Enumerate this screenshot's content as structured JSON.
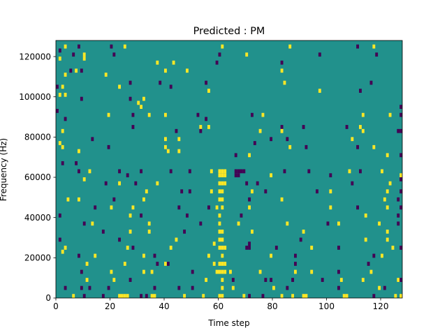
{
  "chart_data": {
    "type": "heatmap",
    "title": "Predicted : PM",
    "xlabel": "Time step",
    "ylabel": "Frequency (Hz)",
    "xlim": [
      0,
      128
    ],
    "ylim": [
      0,
      128000
    ],
    "x_ticks": [
      0,
      20,
      40,
      60,
      80,
      100,
      120
    ],
    "y_ticks": [
      0,
      20000,
      40000,
      60000,
      80000,
      100000,
      120000
    ],
    "x_tick_labels": [
      "0",
      "20",
      "40",
      "60",
      "80",
      "100",
      "120"
    ],
    "y_tick_labels": [
      "0",
      "20000",
      "40000",
      "60000",
      "80000",
      "100000",
      "120000"
    ],
    "grid": false,
    "n_freq_bins": 64,
    "freq_bin_width_hz": 2000,
    "background_value": 0,
    "value_colors": {
      "-1": "#440154",
      "0": "#21918c",
      "1": "#fde725"
    },
    "cells_note": "Approximate read of visible cells: [time_step, frequency_hz, value]",
    "cells": [
      [
        3,
        125000,
        1
      ],
      [
        8,
        125000,
        -1
      ],
      [
        20,
        125000,
        -1
      ],
      [
        25,
        125000,
        1
      ],
      [
        61,
        125000,
        1
      ],
      [
        86,
        125000,
        1
      ],
      [
        111,
        125000,
        -1
      ],
      [
        117,
        125000,
        1
      ],
      [
        1,
        123000,
        -1
      ],
      [
        6,
        121000,
        -1
      ],
      [
        10,
        121000,
        1
      ],
      [
        21,
        121000,
        -1
      ],
      [
        60,
        121000,
        -1
      ],
      [
        70,
        121000,
        1
      ],
      [
        97,
        121000,
        -1
      ],
      [
        118,
        121000,
        -1
      ],
      [
        1,
        119000,
        1
      ],
      [
        10,
        119000,
        1
      ],
      [
        37,
        117000,
        1
      ],
      [
        43,
        117000,
        1
      ],
      [
        59,
        117000,
        -1
      ],
      [
        83,
        117000,
        -1
      ],
      [
        5,
        113000,
        -1
      ],
      [
        9,
        113000,
        -1
      ],
      [
        3,
        111000,
        1
      ],
      [
        7,
        113000,
        1
      ],
      [
        18,
        111000,
        1
      ],
      [
        40,
        113000,
        1
      ],
      [
        48,
        113000,
        1
      ],
      [
        83,
        113000,
        1
      ],
      [
        27,
        107000,
        -1
      ],
      [
        38,
        107000,
        -1
      ],
      [
        55,
        107000,
        -1
      ],
      [
        84,
        107000,
        1
      ],
      [
        116,
        107000,
        -1
      ],
      [
        0,
        105000,
        -1
      ],
      [
        2,
        105000,
        1
      ],
      [
        23,
        105000,
        1
      ],
      [
        42,
        105000,
        -1
      ],
      [
        56,
        103000,
        1
      ],
      [
        97,
        103000,
        1
      ],
      [
        112,
        103000,
        -1
      ],
      [
        1,
        101000,
        1
      ],
      [
        3,
        101000,
        1
      ],
      [
        9,
        99000,
        -1
      ],
      [
        27,
        99000,
        -1
      ],
      [
        32,
        99000,
        1
      ],
      [
        30,
        97000,
        1
      ],
      [
        31,
        95000,
        1
      ],
      [
        127,
        95000,
        -1
      ],
      [
        0,
        93000,
        -1
      ],
      [
        28,
        91000,
        -1
      ],
      [
        19,
        91000,
        1
      ],
      [
        34,
        91000,
        1
      ],
      [
        40,
        91000,
        1
      ],
      [
        52,
        91000,
        -1
      ],
      [
        76,
        91000,
        1
      ],
      [
        72,
        91000,
        -1
      ],
      [
        113,
        91000,
        1
      ],
      [
        123,
        91000,
        1
      ],
      [
        127,
        91000,
        -1
      ],
      [
        3,
        89000,
        -1
      ],
      [
        55,
        89000,
        -1
      ],
      [
        28,
        85000,
        -1
      ],
      [
        53,
        85000,
        1
      ],
      [
        56,
        85000,
        1
      ],
      [
        83,
        85000,
        -1
      ],
      [
        91,
        85000,
        -1
      ],
      [
        107,
        85000,
        -1
      ],
      [
        112,
        85000,
        1
      ],
      [
        126,
        83000,
        -1
      ],
      [
        127,
        83000,
        -1
      ],
      [
        2,
        83000,
        1
      ],
      [
        44,
        83000,
        -1
      ],
      [
        53,
        83000,
        -1
      ],
      [
        75,
        83000,
        1
      ],
      [
        83,
        83000,
        1
      ],
      [
        113,
        83000,
        1
      ],
      [
        13,
        79000,
        -1
      ],
      [
        40,
        79000,
        1
      ],
      [
        45,
        79000,
        1
      ],
      [
        79,
        79000,
        -1
      ],
      [
        85,
        79000,
        -1
      ],
      [
        109,
        79000,
        1
      ],
      [
        1,
        77000,
        1
      ],
      [
        2,
        75000,
        1
      ],
      [
        19,
        75000,
        -1
      ],
      [
        40,
        75000,
        1
      ],
      [
        41,
        73000,
        1
      ],
      [
        45,
        73000,
        1
      ],
      [
        73,
        77000,
        -1
      ],
      [
        86,
        75000,
        1
      ],
      [
        92,
        75000,
        -1
      ],
      [
        111,
        75000,
        -1
      ],
      [
        117,
        75000,
        1
      ],
      [
        8,
        73000,
        1
      ],
      [
        66,
        71000,
        -1
      ],
      [
        71,
        71000,
        1
      ],
      [
        122,
        71000,
        1
      ],
      [
        128,
        71000,
        -1
      ],
      [
        2,
        67000,
        -1
      ],
      [
        7,
        67000,
        -1
      ],
      [
        8,
        63000,
        -1
      ],
      [
        12,
        63000,
        1
      ],
      [
        23,
        63000,
        -1
      ],
      [
        31,
        63000,
        -1
      ],
      [
        42,
        63000,
        -1
      ],
      [
        49,
        63000,
        -1
      ],
      [
        57,
        63000,
        1
      ],
      [
        69,
        63000,
        -1
      ],
      [
        84,
        63000,
        -1
      ],
      [
        93,
        63000,
        -1
      ],
      [
        108,
        63000,
        1
      ],
      [
        112,
        63000,
        -1
      ],
      [
        120,
        63000,
        1
      ],
      [
        127,
        61000,
        1
      ],
      [
        60,
        63000,
        1
      ],
      [
        61,
        63000,
        1
      ],
      [
        62,
        63000,
        1
      ],
      [
        66,
        63000,
        -1
      ],
      [
        67,
        63000,
        -1
      ],
      [
        68,
        63000,
        -1
      ],
      [
        60,
        61000,
        1
      ],
      [
        61,
        61000,
        1
      ],
      [
        62,
        61000,
        1
      ],
      [
        66,
        61000,
        -1
      ],
      [
        67,
        61000,
        -1
      ],
      [
        10,
        59000,
        1
      ],
      [
        26,
        61000,
        -1
      ],
      [
        79,
        61000,
        1
      ],
      [
        101,
        61000,
        -1
      ],
      [
        128,
        59000,
        -1
      ],
      [
        18,
        57000,
        -1
      ],
      [
        23,
        57000,
        1
      ],
      [
        29,
        57000,
        -1
      ],
      [
        37,
        57000,
        1
      ],
      [
        60,
        57000,
        1
      ],
      [
        61,
        57000,
        1
      ],
      [
        62,
        57000,
        1
      ],
      [
        70,
        57000,
        -1
      ],
      [
        74,
        57000,
        -1
      ],
      [
        109,
        57000,
        -1
      ],
      [
        123,
        57000,
        1
      ],
      [
        33,
        53000,
        1
      ],
      [
        46,
        53000,
        -1
      ],
      [
        49,
        53000,
        -1
      ],
      [
        57,
        53000,
        1
      ],
      [
        60,
        53000,
        1
      ],
      [
        61,
        53000,
        1
      ],
      [
        72,
        53000,
        1
      ],
      [
        77,
        53000,
        -1
      ],
      [
        96,
        53000,
        -1
      ],
      [
        101,
        53000,
        1
      ],
      [
        122,
        53000,
        1
      ],
      [
        128,
        53000,
        -1
      ],
      [
        4,
        49000,
        1
      ],
      [
        8,
        49000,
        1
      ],
      [
        21,
        49000,
        -1
      ],
      [
        32,
        49000,
        1
      ],
      [
        60,
        49000,
        1
      ],
      [
        61,
        49000,
        1
      ],
      [
        71,
        49000,
        -1
      ],
      [
        83,
        49000,
        1
      ],
      [
        121,
        49000,
        1
      ],
      [
        126,
        49000,
        -1
      ],
      [
        14,
        45000,
        -1
      ],
      [
        20,
        45000,
        1
      ],
      [
        28,
        45000,
        1
      ],
      [
        45,
        45000,
        -1
      ],
      [
        56,
        45000,
        -1
      ],
      [
        59,
        45000,
        1
      ],
      [
        61,
        45000,
        1
      ],
      [
        71,
        45000,
        1
      ],
      [
        101,
        45000,
        1
      ],
      [
        111,
        45000,
        -1
      ],
      [
        122,
        45000,
        1
      ],
      [
        128,
        45000,
        -1
      ],
      [
        1,
        41000,
        -1
      ],
      [
        27,
        41000,
        1
      ],
      [
        31,
        41000,
        -1
      ],
      [
        48,
        41000,
        -1
      ],
      [
        60,
        41000,
        1
      ],
      [
        68,
        41000,
        -1
      ],
      [
        114,
        41000,
        1
      ],
      [
        126,
        41000,
        -1
      ],
      [
        10,
        37000,
        -1
      ],
      [
        13,
        37000,
        1
      ],
      [
        34,
        37000,
        1
      ],
      [
        53,
        37000,
        -1
      ],
      [
        60,
        37000,
        1
      ],
      [
        67,
        37000,
        1
      ],
      [
        85,
        37000,
        1
      ],
      [
        100,
        37000,
        -1
      ],
      [
        104,
        37000,
        1
      ],
      [
        119,
        37000,
        1
      ],
      [
        126,
        37000,
        -1
      ],
      [
        17,
        33000,
        -1
      ],
      [
        27,
        33000,
        1
      ],
      [
        34,
        33000,
        1
      ],
      [
        47,
        33000,
        -1
      ],
      [
        60,
        33000,
        1
      ],
      [
        61,
        33000,
        1
      ],
      [
        72,
        33000,
        1
      ],
      [
        91,
        33000,
        1
      ],
      [
        122,
        33000,
        1
      ],
      [
        1,
        29000,
        -1
      ],
      [
        23,
        29000,
        -1
      ],
      [
        44,
        29000,
        1
      ],
      [
        58,
        27000,
        1
      ],
      [
        60,
        29000,
        1
      ],
      [
        61,
        29000,
        1
      ],
      [
        71,
        27000,
        -1
      ],
      [
        90,
        29000,
        -1
      ],
      [
        114,
        29000,
        1
      ],
      [
        122,
        29000,
        1
      ],
      [
        3,
        25000,
        1
      ],
      [
        26,
        25000,
        1
      ],
      [
        28,
        25000,
        -1
      ],
      [
        42,
        25000,
        1
      ],
      [
        60,
        25000,
        1
      ],
      [
        61,
        25000,
        1
      ],
      [
        62,
        25000,
        1
      ],
      [
        70,
        25000,
        -1
      ],
      [
        71,
        25000,
        -1
      ],
      [
        81,
        25000,
        -1
      ],
      [
        94,
        25000,
        1
      ],
      [
        104,
        25000,
        -1
      ],
      [
        124,
        25000,
        1
      ],
      [
        128,
        25000,
        -1
      ],
      [
        2,
        23000,
        1
      ],
      [
        8,
        21000,
        -1
      ],
      [
        14,
        21000,
        1
      ],
      [
        32,
        21000,
        1
      ],
      [
        36,
        21000,
        -1
      ],
      [
        56,
        21000,
        1
      ],
      [
        61,
        21000,
        1
      ],
      [
        79,
        21000,
        1
      ],
      [
        88,
        21000,
        -1
      ],
      [
        117,
        21000,
        -1
      ],
      [
        120,
        21000,
        1
      ],
      [
        11,
        17000,
        1
      ],
      [
        25,
        17000,
        1
      ],
      [
        37,
        17000,
        -1
      ],
      [
        40,
        17000,
        1
      ],
      [
        41,
        17000,
        -1
      ],
      [
        58,
        17000,
        1
      ],
      [
        60,
        17000,
        1
      ],
      [
        61,
        17000,
        1
      ],
      [
        62,
        17000,
        1
      ],
      [
        88,
        17000,
        -1
      ],
      [
        115,
        17000,
        -1
      ],
      [
        9,
        13000,
        -1
      ],
      [
        20,
        13000,
        1
      ],
      [
        32,
        13000,
        1
      ],
      [
        35,
        13000,
        1
      ],
      [
        50,
        13000,
        -1
      ],
      [
        59,
        13000,
        1
      ],
      [
        60,
        13000,
        1
      ],
      [
        61,
        13000,
        1
      ],
      [
        62,
        13000,
        1
      ],
      [
        64,
        13000,
        1
      ],
      [
        75,
        13000,
        1
      ],
      [
        88,
        13000,
        1
      ],
      [
        94,
        13000,
        1
      ],
      [
        104,
        13000,
        -1
      ],
      [
        116,
        13000,
        1
      ],
      [
        11,
        9000,
        1
      ],
      [
        21,
        9000,
        1
      ],
      [
        27,
        9000,
        -1
      ],
      [
        55,
        9000,
        1
      ],
      [
        61,
        9000,
        1
      ],
      [
        65,
        9000,
        -1
      ],
      [
        77,
        9000,
        -1
      ],
      [
        79,
        9000,
        -1
      ],
      [
        87,
        9000,
        -1
      ],
      [
        98,
        9000,
        -1
      ],
      [
        105,
        9000,
        1
      ],
      [
        113,
        9000,
        1
      ],
      [
        126,
        9000,
        1
      ],
      [
        128,
        9000,
        -1
      ],
      [
        3,
        5000,
        -1
      ],
      [
        9,
        5000,
        -1
      ],
      [
        12,
        5000,
        -1
      ],
      [
        19,
        5000,
        -1
      ],
      [
        36,
        5000,
        -1
      ],
      [
        45,
        5000,
        -1
      ],
      [
        50,
        5000,
        -1
      ],
      [
        61,
        5000,
        1
      ],
      [
        65,
        5000,
        1
      ],
      [
        80,
        5000,
        1
      ],
      [
        85,
        5000,
        -1
      ],
      [
        104,
        5000,
        -1
      ],
      [
        119,
        5000,
        1
      ],
      [
        121,
        5000,
        -1
      ],
      [
        6,
        1000,
        1
      ],
      [
        10,
        1000,
        -1
      ],
      [
        17,
        1000,
        -1
      ],
      [
        23,
        1000,
        1
      ],
      [
        24,
        1000,
        1
      ],
      [
        25,
        1000,
        1
      ],
      [
        26,
        1000,
        1
      ],
      [
        31,
        1000,
        -1
      ],
      [
        33,
        1000,
        -1
      ],
      [
        35,
        1000,
        1
      ],
      [
        36,
        1000,
        1
      ],
      [
        47,
        1000,
        1
      ],
      [
        54,
        1000,
        1
      ],
      [
        60,
        1000,
        1
      ],
      [
        61,
        1000,
        1
      ],
      [
        69,
        1000,
        1
      ],
      [
        71,
        1000,
        -1
      ],
      [
        76,
        1000,
        -1
      ],
      [
        83,
        1000,
        1
      ],
      [
        87,
        1000,
        1
      ],
      [
        91,
        1000,
        1
      ],
      [
        92,
        1000,
        1
      ],
      [
        106,
        1000,
        1
      ],
      [
        107,
        1000,
        1
      ],
      [
        117,
        1000,
        -1
      ],
      [
        125,
        1000,
        1
      ],
      [
        127,
        1000,
        1
      ]
    ]
  }
}
